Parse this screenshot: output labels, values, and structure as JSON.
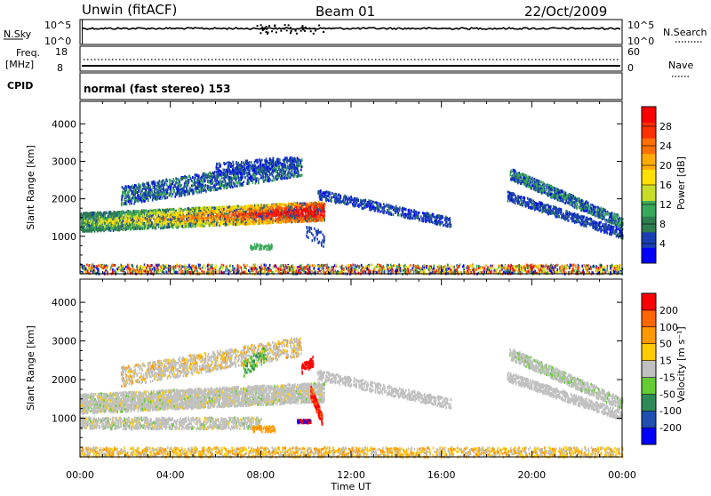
{
  "header": {
    "station": "Unwin (fitACF)",
    "beam": "Beam 01",
    "date": "22/Oct/2009"
  },
  "panels": {
    "nsky": {
      "label": "N.Sky",
      "ticks": [
        "10^5",
        "10^0"
      ],
      "right_ticks": [
        "10^5",
        "10^0"
      ],
      "right_label": "N.Search"
    },
    "freq": {
      "label_line1": "Freq.",
      "label_line2": "[MHz]",
      "ticks": [
        "18",
        "8"
      ],
      "right_ticks": [
        "60",
        "0"
      ],
      "right_label": "Nave"
    },
    "cpid": {
      "label": "CPID",
      "text": "normal (fast stereo) 153"
    }
  },
  "chart_data": [
    {
      "type": "heatmap",
      "name": "power",
      "xlabel": "",
      "ylabel": "Slant Range [km]",
      "x_ticks": [
        "00:00",
        "04:00",
        "08:00",
        "12:00",
        "16:00",
        "20:00",
        "00:00"
      ],
      "y_ticks": [
        1000,
        2000,
        3000,
        4000
      ],
      "ylim": [
        0,
        4600
      ],
      "xlim_hours": [
        0,
        24
      ],
      "colorbar": {
        "label": "Power [dB]",
        "ticks": [
          "28",
          "24",
          "20",
          "16",
          "12",
          "8",
          "4"
        ],
        "colors": [
          "#0000ff",
          "#1a3fb3",
          "#2e7d4f",
          "#3aa85a",
          "#c8dd28",
          "#ffe000",
          "#ffaa00",
          "#ff7000",
          "#ff3000",
          "#ff0000"
        ]
      }
    },
    {
      "type": "heatmap",
      "name": "velocity",
      "xlabel": "Time UT",
      "ylabel": "Slant Range [km]",
      "x_ticks": [
        "00:00",
        "04:00",
        "08:00",
        "12:00",
        "16:00",
        "20:00",
        "00:00"
      ],
      "y_ticks": [
        1000,
        2000,
        3000,
        4000
      ],
      "ylim": [
        0,
        4600
      ],
      "xlim_hours": [
        0,
        24
      ],
      "colorbar": {
        "label": "Velocity [m s⁻¹]",
        "ticks": [
          "200",
          "100",
          "50",
          "15",
          "-15",
          "-50",
          "-100",
          "-200"
        ],
        "colors": [
          "#0000ff",
          "#1f4fb0",
          "#2e8b57",
          "#66cc33",
          "#c0c0c0",
          "#ffcc00",
          "#ff9900",
          "#ff6600",
          "#ff0000"
        ]
      }
    }
  ]
}
